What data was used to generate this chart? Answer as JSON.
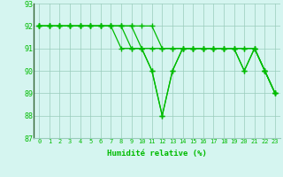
{
  "xlabel": "Humidité relative (%)",
  "bg_color": "#d5f5f0",
  "grid_color": "#99ccbb",
  "line_color": "#00bb00",
  "spine_color": "#336633",
  "xlim": [
    -0.5,
    23.5
  ],
  "ylim": [
    87,
    93
  ],
  "yticks": [
    87,
    88,
    89,
    90,
    91,
    92,
    93
  ],
  "xticks": [
    0,
    1,
    2,
    3,
    4,
    5,
    6,
    7,
    8,
    9,
    10,
    11,
    12,
    13,
    14,
    15,
    16,
    17,
    18,
    19,
    20,
    21,
    22,
    23
  ],
  "lines": [
    [
      92,
      92,
      92,
      92,
      92,
      92,
      92,
      92,
      92,
      92,
      92,
      92,
      91,
      91,
      91,
      91,
      91,
      91,
      91,
      91,
      91,
      91,
      90,
      89
    ],
    [
      92,
      92,
      92,
      92,
      92,
      92,
      92,
      92,
      91,
      91,
      91,
      90,
      88,
      90,
      91,
      91,
      91,
      91,
      91,
      91,
      90,
      91,
      90,
      89
    ],
    [
      92,
      92,
      92,
      92,
      92,
      92,
      92,
      92,
      92,
      91,
      91,
      91,
      91,
      91,
      91,
      91,
      91,
      91,
      91,
      91,
      91,
      91,
      90,
      89
    ],
    [
      92,
      92,
      92,
      92,
      92,
      92,
      92,
      92,
      92,
      92,
      91,
      90,
      88,
      90,
      91,
      91,
      91,
      91,
      91,
      91,
      90,
      91,
      90,
      89
    ]
  ]
}
